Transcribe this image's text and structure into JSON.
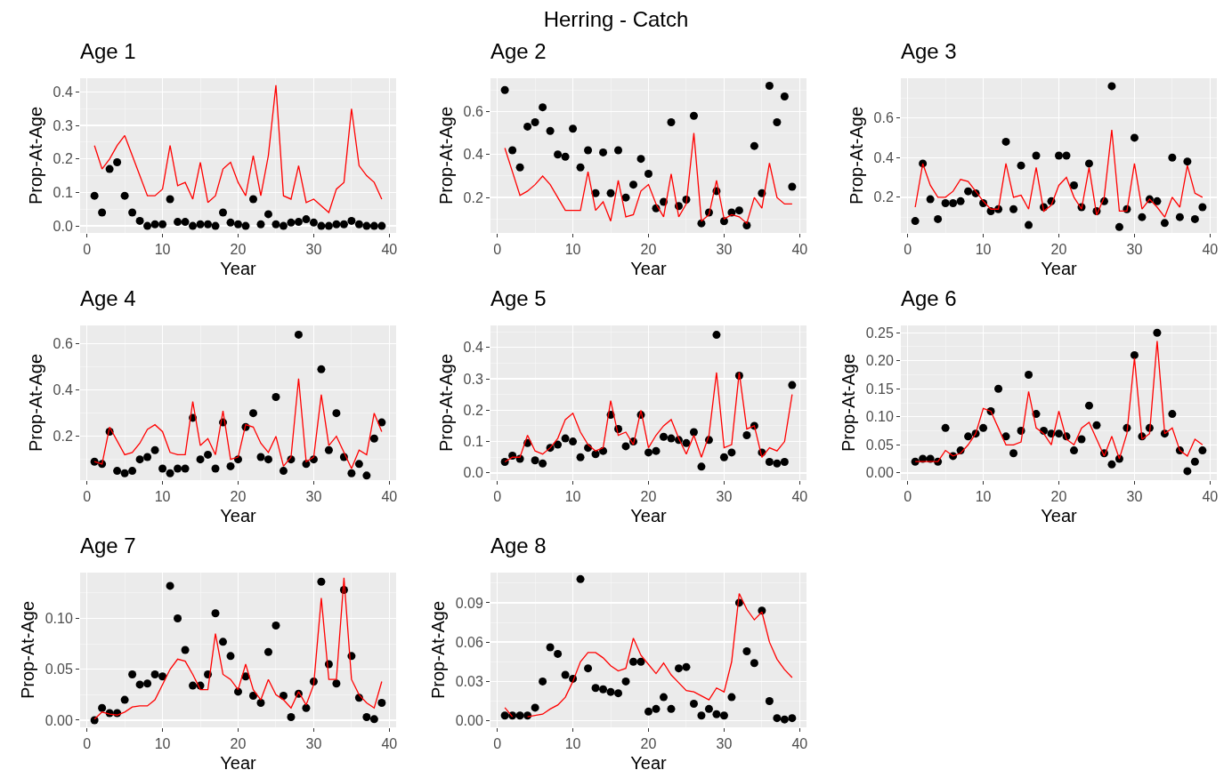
{
  "chart_data": [
    {
      "type": "scatter",
      "title": "Age 1",
      "xlabel": "Year",
      "ylabel": "Prop-At-Age",
      "annotations": [
        "Herring - Catch"
      ],
      "grid": true,
      "x": [
        1,
        2,
        3,
        4,
        5,
        6,
        7,
        8,
        9,
        10,
        11,
        12,
        13,
        14,
        15,
        16,
        17,
        18,
        19,
        20,
        21,
        22,
        23,
        24,
        25,
        26,
        27,
        28,
        29,
        30,
        31,
        32,
        33,
        34,
        35,
        36,
        37,
        38,
        39
      ],
      "xlim": [
        -0.9,
        40.9
      ],
      "xticks": [
        0,
        10,
        20,
        30,
        40
      ],
      "ylim": [
        -0.021,
        0.441
      ],
      "yticks": [
        {
          "value": 0,
          "label": "0.0"
        },
        0.1,
        0.2,
        0.3,
        0.4
      ],
      "series": [
        {
          "marker": "circle",
          "color": "#000000",
          "values": [
            0.09,
            0.04,
            0.17,
            0.19,
            0.09,
            0.04,
            0.015,
            0,
            0.005,
            0.005,
            0.08,
            0.012,
            0.012,
            0,
            0.005,
            0.005,
            0,
            0.04,
            0.01,
            0.005,
            0,
            0.08,
            0.005,
            0.035,
            0.005,
            0,
            0.01,
            0.012,
            0.02,
            0.01,
            0,
            0,
            0.005,
            0.005,
            0.015,
            0.005,
            0,
            0,
            0
          ]
        },
        {
          "type": "line",
          "marker": "none",
          "color": "#ff0000",
          "values": [
            0.24,
            0.17,
            0.2,
            0.24,
            0.27,
            0.21,
            0.15,
            0.09,
            0.09,
            0.11,
            0.24,
            0.12,
            0.13,
            0.08,
            0.19,
            0.07,
            0.09,
            0.17,
            0.19,
            0.13,
            0.09,
            0.21,
            0.09,
            0.21,
            0.42,
            0.09,
            0.08,
            0.18,
            0.07,
            0.08,
            0.06,
            0.04,
            0.11,
            0.13,
            0.35,
            0.18,
            0.15,
            0.13,
            0.08
          ]
        }
      ]
    },
    {
      "type": "scatter",
      "title": "Age 2",
      "xlabel": "Year",
      "ylabel": "Prop-At-Age",
      "grid": true,
      "x": [
        1,
        2,
        3,
        4,
        5,
        6,
        7,
        8,
        9,
        10,
        11,
        12,
        13,
        14,
        15,
        16,
        17,
        18,
        19,
        20,
        21,
        22,
        23,
        24,
        25,
        26,
        27,
        28,
        29,
        30,
        31,
        32,
        33,
        34,
        35,
        36,
        37,
        38,
        39
      ],
      "xlim": [
        -0.9,
        40.9
      ],
      "xticks": [
        0,
        10,
        20,
        30,
        40
      ],
      "ylim": [
        0.035,
        0.755
      ],
      "yticks": [
        0.2,
        0.4,
        0.6
      ],
      "series": [
        {
          "marker": "circle",
          "color": "#000000",
          "values": [
            0.7,
            0.42,
            0.34,
            0.53,
            0.55,
            0.62,
            0.51,
            0.4,
            0.39,
            0.52,
            0.34,
            0.42,
            0.22,
            0.41,
            0.22,
            0.42,
            0.2,
            0.26,
            0.38,
            0.31,
            0.15,
            0.18,
            0.55,
            0.16,
            0.19,
            0.58,
            0.08,
            0.13,
            0.23,
            0.09,
            0.13,
            0.14,
            0.07,
            0.44,
            0.22,
            0.72,
            0.55,
            0.67,
            0.25
          ]
        },
        {
          "type": "line",
          "marker": "none",
          "color": "#ff0000",
          "values": [
            0.43,
            0.32,
            0.21,
            0.23,
            0.26,
            0.3,
            0.26,
            0.2,
            0.14,
            0.14,
            0.14,
            0.32,
            0.14,
            0.18,
            0.09,
            0.28,
            0.11,
            0.12,
            0.23,
            0.26,
            0.17,
            0.11,
            0.31,
            0.11,
            0.17,
            0.5,
            0.09,
            0.12,
            0.28,
            0.1,
            0.12,
            0.11,
            0.08,
            0.2,
            0.15,
            0.36,
            0.2,
            0.17,
            0.17
          ]
        }
      ]
    },
    {
      "type": "scatter",
      "title": "Age 3",
      "xlabel": "Year",
      "ylabel": "Prop-At-Age",
      "grid": true,
      "x": [
        1,
        2,
        3,
        4,
        5,
        6,
        7,
        8,
        9,
        10,
        11,
        12,
        13,
        14,
        15,
        16,
        17,
        18,
        19,
        20,
        21,
        22,
        23,
        24,
        25,
        26,
        27,
        28,
        29,
        30,
        31,
        32,
        33,
        34,
        35,
        36,
        37,
        38,
        39
      ],
      "xlim": [
        -0.9,
        40.9
      ],
      "xticks": [
        0,
        10,
        20,
        30,
        40
      ],
      "ylim": [
        0.02,
        0.8
      ],
      "yticks": [
        0.2,
        0.4,
        0.6
      ],
      "series": [
        {
          "marker": "circle",
          "color": "#000000",
          "values": [
            0.08,
            0.37,
            0.19,
            0.09,
            0.17,
            0.17,
            0.18,
            0.23,
            0.22,
            0.17,
            0.13,
            0.14,
            0.48,
            0.14,
            0.36,
            0.06,
            0.41,
            0.15,
            0.18,
            0.41,
            0.41,
            0.26,
            0.15,
            0.37,
            0.13,
            0.18,
            0.76,
            0.05,
            0.14,
            0.5,
            0.1,
            0.19,
            0.18,
            0.07,
            0.4,
            0.1,
            0.38,
            0.09,
            0.15
          ]
        },
        {
          "type": "line",
          "marker": "none",
          "color": "#ff0000",
          "values": [
            0.15,
            0.37,
            0.26,
            0.2,
            0.2,
            0.23,
            0.29,
            0.28,
            0.23,
            0.18,
            0.14,
            0.14,
            0.37,
            0.2,
            0.21,
            0.14,
            0.35,
            0.13,
            0.16,
            0.26,
            0.3,
            0.2,
            0.14,
            0.35,
            0.11,
            0.2,
            0.54,
            0.13,
            0.13,
            0.37,
            0.14,
            0.19,
            0.15,
            0.1,
            0.2,
            0.15,
            0.36,
            0.22,
            0.2
          ]
        }
      ]
    },
    {
      "type": "scatter",
      "title": "Age 4",
      "xlabel": "Year",
      "ylabel": "Prop-At-Age",
      "grid": true,
      "x": [
        1,
        2,
        3,
        4,
        5,
        6,
        7,
        8,
        9,
        10,
        11,
        12,
        13,
        14,
        15,
        16,
        17,
        18,
        19,
        20,
        21,
        22,
        23,
        24,
        25,
        26,
        27,
        28,
        29,
        30,
        31,
        32,
        33,
        34,
        35,
        36,
        37,
        38,
        39
      ],
      "xlim": [
        -0.9,
        40.9
      ],
      "xticks": [
        0,
        10,
        20,
        30,
        40
      ],
      "ylim": [
        0.01,
        0.68
      ],
      "yticks": [
        0.2,
        0.4,
        0.6
      ],
      "series": [
        {
          "marker": "circle",
          "color": "#000000",
          "values": [
            0.09,
            0.08,
            0.22,
            0.05,
            0.04,
            0.05,
            0.1,
            0.11,
            0.14,
            0.06,
            0.04,
            0.06,
            0.06,
            0.28,
            0.1,
            0.12,
            0.06,
            0.26,
            0.07,
            0.1,
            0.24,
            0.3,
            0.11,
            0.1,
            0.37,
            0.05,
            0.1,
            0.64,
            0.08,
            0.1,
            0.49,
            0.14,
            0.3,
            0.11,
            0.04,
            0.08,
            0.03,
            0.19,
            0.26
          ]
        },
        {
          "type": "line",
          "marker": "none",
          "color": "#ff0000",
          "values": [
            0.09,
            0.08,
            0.24,
            0.18,
            0.12,
            0.13,
            0.17,
            0.23,
            0.25,
            0.22,
            0.13,
            0.12,
            0.12,
            0.35,
            0.16,
            0.19,
            0.12,
            0.31,
            0.1,
            0.11,
            0.25,
            0.24,
            0.17,
            0.13,
            0.2,
            0.07,
            0.11,
            0.45,
            0.09,
            0.11,
            0.38,
            0.16,
            0.2,
            0.13,
            0.06,
            0.14,
            0.12,
            0.3,
            0.22
          ]
        }
      ]
    },
    {
      "type": "scatter",
      "title": "Age 5",
      "xlabel": "Year",
      "ylabel": "Prop-At-Age",
      "grid": true,
      "x": [
        1,
        2,
        3,
        4,
        5,
        6,
        7,
        8,
        9,
        10,
        11,
        12,
        13,
        14,
        15,
        16,
        17,
        18,
        19,
        20,
        21,
        22,
        23,
        24,
        25,
        26,
        27,
        28,
        29,
        30,
        31,
        32,
        33,
        34,
        35,
        36,
        37,
        38,
        39
      ],
      "xlim": [
        -0.9,
        40.9
      ],
      "xticks": [
        0,
        10,
        20,
        30,
        40
      ],
      "ylim": [
        -0.023,
        0.47
      ],
      "yticks": [
        {
          "value": 0,
          "label": "0.0"
        },
        0.1,
        0.2,
        0.3,
        0.4
      ],
      "series": [
        {
          "marker": "circle",
          "color": "#000000",
          "values": [
            0.035,
            0.055,
            0.045,
            0.095,
            0.04,
            0.03,
            0.08,
            0.09,
            0.11,
            0.1,
            0.05,
            0.08,
            0.06,
            0.07,
            0.185,
            0.14,
            0.085,
            0.1,
            0.185,
            0.065,
            0.07,
            0.115,
            0.11,
            0.105,
            0.095,
            0.13,
            0.02,
            0.105,
            0.44,
            0.05,
            0.065,
            0.31,
            0.12,
            0.15,
            0.065,
            0.035,
            0.03,
            0.035,
            0.28
          ]
        },
        {
          "type": "line",
          "marker": "none",
          "color": "#ff0000",
          "values": [
            0.035,
            0.05,
            0.05,
            0.12,
            0.07,
            0.06,
            0.08,
            0.11,
            0.17,
            0.19,
            0.13,
            0.09,
            0.07,
            0.08,
            0.23,
            0.12,
            0.13,
            0.09,
            0.2,
            0.08,
            0.12,
            0.15,
            0.17,
            0.11,
            0.06,
            0.12,
            0.05,
            0.12,
            0.32,
            0.08,
            0.09,
            0.32,
            0.14,
            0.15,
            0.05,
            0.08,
            0.07,
            0.1,
            0.25
          ]
        }
      ]
    },
    {
      "type": "scatter",
      "title": "Age 6",
      "xlabel": "Year",
      "ylabel": "Prop-At-Age",
      "grid": true,
      "x": [
        1,
        2,
        3,
        4,
        5,
        6,
        7,
        8,
        9,
        10,
        11,
        12,
        13,
        14,
        15,
        16,
        17,
        18,
        19,
        20,
        21,
        22,
        23,
        24,
        25,
        26,
        27,
        28,
        29,
        30,
        31,
        32,
        33,
        34,
        35,
        36,
        37,
        38,
        39
      ],
      "xlim": [
        -0.9,
        40.9
      ],
      "xticks": [
        0,
        10,
        20,
        30,
        40
      ],
      "ylim": [
        -0.013,
        0.263
      ],
      "yticks": [
        {
          "value": 0,
          "label": "0.00"
        },
        0.05,
        {
          "value": 0.1,
          "label": "0.10"
        },
        0.15,
        {
          "value": 0.2,
          "label": "0.20"
        },
        0.25
      ],
      "series": [
        {
          "marker": "circle",
          "color": "#000000",
          "values": [
            0.02,
            0.025,
            0.025,
            0.02,
            0.08,
            0.03,
            0.04,
            0.065,
            0.07,
            0.08,
            0.11,
            0.15,
            0.065,
            0.035,
            0.075,
            0.175,
            0.105,
            0.075,
            0.07,
            0.07,
            0.065,
            0.04,
            0.06,
            0.12,
            0.085,
            0.035,
            0.015,
            0.025,
            0.08,
            0.21,
            0.065,
            0.08,
            0.25,
            0.07,
            0.105,
            0.04,
            0.003,
            0.02,
            0.04
          ]
        },
        {
          "type": "line",
          "marker": "none",
          "color": "#ff0000",
          "values": [
            0.02,
            0.02,
            0.02,
            0.02,
            0.04,
            0.03,
            0.035,
            0.05,
            0.07,
            0.115,
            0.11,
            0.08,
            0.05,
            0.05,
            0.055,
            0.145,
            0.08,
            0.07,
            0.05,
            0.11,
            0.06,
            0.05,
            0.08,
            0.09,
            0.06,
            0.03,
            0.065,
            0.025,
            0.07,
            0.205,
            0.06,
            0.07,
            0.235,
            0.07,
            0.08,
            0.04,
            0.03,
            0.06,
            0.05
          ]
        }
      ]
    },
    {
      "type": "scatter",
      "title": "Age 7",
      "xlabel": "Year",
      "ylabel": "Prop-At-Age",
      "grid": true,
      "x": [
        1,
        2,
        3,
        4,
        5,
        6,
        7,
        8,
        9,
        10,
        11,
        12,
        13,
        14,
        15,
        16,
        17,
        18,
        19,
        20,
        21,
        22,
        23,
        24,
        25,
        26,
        27,
        28,
        29,
        30,
        31,
        32,
        33,
        34,
        35,
        36,
        37,
        38,
        39
      ],
      "xlim": [
        -0.9,
        40.9
      ],
      "xticks": [
        0,
        10,
        20,
        30,
        40
      ],
      "ylim": [
        -0.007,
        0.145
      ],
      "yticks": [
        {
          "value": 0,
          "label": "0.00"
        },
        0.05,
        {
          "value": 0.1,
          "label": "0.10"
        }
      ],
      "series": [
        {
          "marker": "circle",
          "color": "#000000",
          "values": [
            0,
            0.012,
            0.007,
            0.007,
            0.02,
            0.045,
            0.035,
            0.036,
            0.045,
            0.043,
            0.132,
            0.1,
            0.069,
            0.034,
            0.034,
            0.045,
            0.105,
            0.077,
            0.063,
            0.028,
            0.043,
            0.024,
            0.017,
            0.067,
            0.093,
            0.024,
            0.003,
            0.026,
            0.012,
            0.038,
            0.136,
            0.055,
            0.036,
            0.128,
            0.063,
            0.022,
            0.003,
            0.001,
            0.017
          ]
        },
        {
          "type": "line",
          "marker": "none",
          "color": "#ff0000",
          "values": [
            0.001,
            0.008,
            0.006,
            0.005,
            0.008,
            0.013,
            0.014,
            0.014,
            0.02,
            0.035,
            0.05,
            0.06,
            0.058,
            0.045,
            0.03,
            0.03,
            0.085,
            0.045,
            0.04,
            0.03,
            0.055,
            0.03,
            0.02,
            0.04,
            0.025,
            0.02,
            0.012,
            0.028,
            0.015,
            0.035,
            0.12,
            0.04,
            0.04,
            0.14,
            0.04,
            0.025,
            0.017,
            0.012,
            0.038
          ]
        }
      ]
    },
    {
      "type": "scatter",
      "title": "Age 8",
      "xlabel": "Year",
      "ylabel": "Prop-At-Age",
      "grid": true,
      "x": [
        1,
        2,
        3,
        4,
        5,
        6,
        7,
        8,
        9,
        10,
        11,
        12,
        13,
        14,
        15,
        16,
        17,
        18,
        19,
        20,
        21,
        22,
        23,
        24,
        25,
        26,
        27,
        28,
        29,
        30,
        31,
        32,
        33,
        34,
        35,
        36,
        37,
        38,
        39
      ],
      "xlim": [
        -0.9,
        40.9
      ],
      "xticks": [
        0,
        10,
        20,
        30,
        40
      ],
      "ylim": [
        -0.005,
        0.113
      ],
      "yticks": [
        {
          "value": 0,
          "label": "0.00"
        },
        0.03,
        0.06,
        0.09
      ],
      "series": [
        {
          "marker": "circle",
          "color": "#000000",
          "values": [
            0.004,
            0.004,
            0.004,
            0.004,
            0.01,
            0.03,
            0.056,
            0.051,
            0.035,
            0.032,
            0.108,
            0.04,
            0.025,
            0.024,
            0.022,
            0.021,
            0.03,
            0.045,
            0.045,
            0.007,
            0.009,
            0.018,
            0.009,
            0.04,
            0.041,
            0.013,
            0.004,
            0.009,
            0.005,
            0.004,
            0.018,
            0.09,
            0.053,
            0.044,
            0.084,
            0.015,
            0.002,
            0.001,
            0.002
          ]
        },
        {
          "type": "line",
          "marker": "none",
          "color": "#ff0000",
          "values": [
            0.01,
            0.003,
            null,
            0.003,
            0.004,
            0.005,
            0.009,
            0.012,
            0.018,
            0.03,
            0.045,
            0.052,
            0.052,
            0.048,
            0.042,
            0.038,
            0.04,
            0.063,
            0.05,
            0.043,
            0.036,
            0.044,
            0.035,
            0.029,
            0.023,
            0.022,
            0.019,
            0.016,
            0.025,
            0.022,
            0.045,
            0.097,
            0.085,
            0.077,
            0.083,
            0.06,
            0.047,
            0.039,
            0.033
          ]
        }
      ]
    }
  ]
}
